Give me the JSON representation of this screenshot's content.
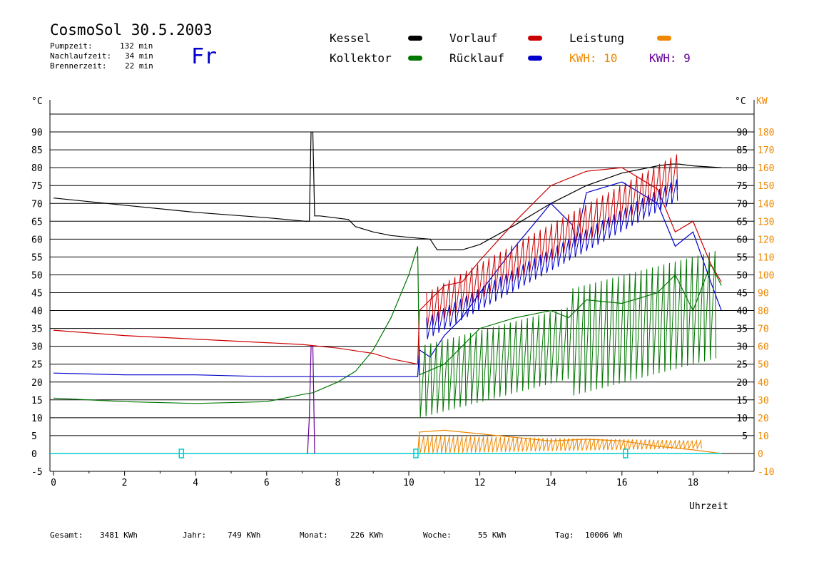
{
  "header": {
    "title": "CosmoSol 30.5.2003",
    "day": "Fr",
    "pumpzeit_label": "Pumpzeit:",
    "pumpzeit_value": "132 min",
    "nachlauf_label": "Nachlaufzeit:",
    "nachlauf_value": "34 min",
    "brenner_label": "Brennerzeit:",
    "brenner_value": "22 min"
  },
  "legend": {
    "kessel": "Kessel",
    "kollektor": "Kollektor",
    "vorlauf": "Vorlauf",
    "ruecklauf": "Rücklauf",
    "leistung": "Leistung",
    "kwh1": "KWH: 10",
    "kwh2": "KWH: 9"
  },
  "colors": {
    "kessel": "#000000",
    "kollektor": "#007700",
    "vorlauf": "#cc0000",
    "ruecklauf": "#0000cc",
    "leistung": "#ee8800",
    "kwh2": "#660099",
    "pump": "#00cccc",
    "burner": "#660099"
  },
  "footer": {
    "gesamt_label": "Gesamt:",
    "gesamt_value": "3481 KWh",
    "jahr_label": "Jahr:",
    "jahr_value": "749 KWh",
    "monat_label": "Monat:",
    "monat_value": "226 KWh",
    "woche_label": "Woche:",
    "woche_value": "55 KWh",
    "tag_label": "Tag:",
    "tag_value": "10006 Wh"
  },
  "chart_data": {
    "type": "line",
    "xlabel": "Uhrzeit",
    "ylabel_left": "°C",
    "ylabel_right_1": "°C",
    "ylabel_right_2": "KW",
    "xlim": [
      0,
      19.5
    ],
    "ylim": [
      -5,
      95
    ],
    "x_ticks": [
      0,
      2,
      4,
      6,
      8,
      10,
      12,
      14,
      16,
      18
    ],
    "y_ticks_left": [
      90,
      85,
      80,
      75,
      70,
      65,
      60,
      55,
      50,
      45,
      40,
      35,
      30,
      25,
      20,
      15,
      10,
      5,
      0,
      -5
    ],
    "y_ticks_right_c": [
      90,
      85,
      80,
      75,
      70,
      65,
      60,
      55,
      50,
      45,
      40,
      35,
      30,
      25,
      20,
      15,
      10,
      5
    ],
    "y_ticks_right_kw": [
      180,
      170,
      160,
      150,
      140,
      130,
      120,
      110,
      100,
      90,
      80,
      70,
      60,
      50,
      40,
      30,
      20,
      10,
      0,
      -10
    ],
    "grid": true,
    "series": [
      {
        "name": "Kessel",
        "x": [
          0,
          2,
          4,
          6,
          7.1,
          7.2,
          7.25,
          7.3,
          7.35,
          7.5,
          8.3,
          8.5,
          9,
          9.5,
          10,
          10.6,
          10.8,
          11.5,
          12,
          13,
          14,
          15,
          16,
          17,
          17.4,
          17.6,
          18,
          18.8
        ],
        "y": [
          71.5,
          69.5,
          67.5,
          66,
          65,
          65,
          90,
          90,
          66.5,
          66.5,
          65.5,
          63.5,
          62,
          61,
          60.5,
          60,
          57,
          57,
          58.5,
          64,
          70,
          75,
          78.5,
          80.5,
          81,
          81,
          80.5,
          80
        ]
      },
      {
        "name": "Kollektor",
        "x": [
          0,
          2,
          4,
          6,
          7,
          7.3,
          8,
          8.5,
          9,
          9.5,
          10,
          10.25,
          10.3,
          11,
          12,
          13,
          14,
          14.5,
          15,
          16,
          17,
          17.5,
          18,
          18.5,
          18.8
        ],
        "y": [
          15.5,
          14.5,
          14,
          14.5,
          16.5,
          17,
          20,
          23,
          29,
          38,
          50,
          58,
          22,
          25,
          35,
          38,
          40,
          38,
          43,
          42,
          45,
          50,
          40,
          53,
          47
        ]
      },
      {
        "name": "Vorlauf",
        "x": [
          0,
          2,
          4,
          6,
          7,
          8,
          9,
          9.5,
          10,
          10.25,
          10.3,
          11,
          11.5,
          12,
          13,
          14,
          15,
          16,
          17,
          17.5,
          18,
          18.5,
          18.8
        ],
        "y": [
          34.5,
          33,
          32,
          31,
          30.5,
          29.5,
          28,
          26.5,
          25.5,
          25,
          40,
          47,
          48,
          54,
          65,
          75,
          79,
          80,
          74,
          62,
          65,
          53,
          48
        ]
      },
      {
        "name": "Rücklauf",
        "x": [
          0,
          2,
          4,
          6,
          7,
          8,
          9,
          10,
          10.25,
          10.3,
          10.6,
          11,
          11.5,
          12,
          13,
          14,
          14.6,
          14.7,
          15,
          16,
          17,
          17.5,
          18,
          18.5,
          18.8
        ],
        "y": [
          22.5,
          22,
          22,
          21.5,
          21.5,
          21.5,
          21.5,
          21.5,
          21.5,
          29,
          27,
          33,
          38,
          45,
          58,
          70,
          64,
          59,
          73,
          76,
          70,
          58,
          62,
          48,
          40
        ]
      },
      {
        "name": "Leistung",
        "x": [
          10.25,
          10.3,
          11,
          12,
          13,
          14,
          15,
          16,
          17,
          18,
          18.8
        ],
        "y": [
          0,
          6,
          6.5,
          5.5,
          4.5,
          3.5,
          4,
          3.5,
          2,
          1,
          0
        ]
      }
    ],
    "pump_markers_x": [
      3.6,
      10.2,
      16.1
    ]
  }
}
